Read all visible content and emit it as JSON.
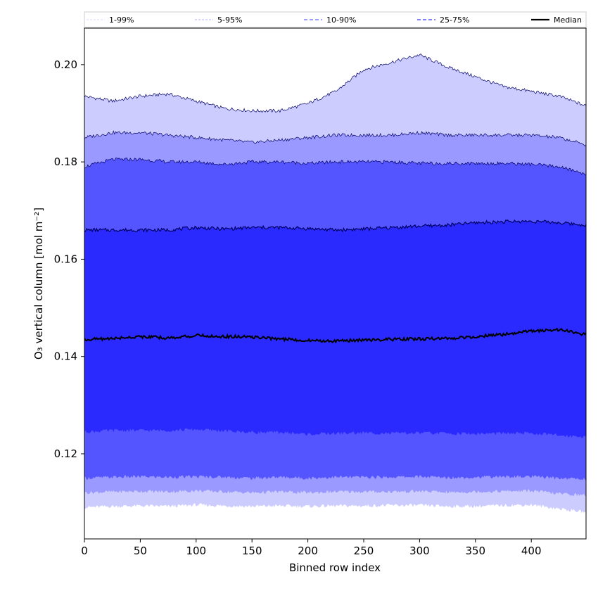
{
  "chart_data": {
    "type": "area",
    "xlabel": "Binned row index",
    "ylabel": "O₃ vertical column [mol m⁻²]",
    "xlim": [
      0,
      449
    ],
    "ylim": [
      0.1025,
      0.2075
    ],
    "x_ticks": [
      0,
      50,
      100,
      150,
      200,
      250,
      300,
      350,
      400
    ],
    "y_ticks": [
      0.12,
      0.14,
      0.16,
      0.18,
      0.2
    ],
    "y_tick_labels": [
      "0.12",
      "0.14",
      "0.16",
      "0.18",
      "0.20"
    ],
    "grid": false,
    "legend_position": "top, above plot",
    "x": [
      0,
      25,
      50,
      75,
      100,
      125,
      150,
      175,
      200,
      225,
      250,
      275,
      300,
      325,
      350,
      375,
      400,
      425,
      449
    ],
    "bands": [
      {
        "name": "1-99%",
        "color": "#ccccff",
        "line_color": "#ccccff",
        "lower": [
          0.109,
          0.1092,
          0.1093,
          0.1092,
          0.1095,
          0.1093,
          0.1092,
          0.1093,
          0.1092,
          0.1093,
          0.1093,
          0.1094,
          0.1094,
          0.1092,
          0.1092,
          0.1094,
          0.1095,
          0.1087,
          0.108
        ],
        "upper": [
          0.1935,
          0.1925,
          0.1935,
          0.194,
          0.1925,
          0.191,
          0.1905,
          0.1905,
          0.192,
          0.1945,
          0.199,
          0.2005,
          0.202,
          0.1995,
          0.1975,
          0.1955,
          0.1945,
          0.1935,
          0.1915
        ]
      },
      {
        "name": "5-95%",
        "color": "#9999ff",
        "line_color": "#9999ff",
        "lower": [
          0.112,
          0.1122,
          0.1123,
          0.1122,
          0.1124,
          0.1122,
          0.112,
          0.1122,
          0.112,
          0.1122,
          0.1122,
          0.1122,
          0.1123,
          0.1121,
          0.1122,
          0.1123,
          0.1124,
          0.1118,
          0.1115
        ],
        "upper": [
          0.185,
          0.186,
          0.186,
          0.1855,
          0.185,
          0.1845,
          0.184,
          0.1845,
          0.185,
          0.1855,
          0.1855,
          0.1855,
          0.186,
          0.1855,
          0.1855,
          0.1855,
          0.1855,
          0.185,
          0.1835
        ]
      },
      {
        "name": "10-90%",
        "color": "#5555ff",
        "line_color": "#6666ff",
        "lower": [
          0.115,
          0.1152,
          0.1153,
          0.1152,
          0.1153,
          0.1152,
          0.115,
          0.1152,
          0.115,
          0.1152,
          0.1152,
          0.1152,
          0.1153,
          0.1151,
          0.1152,
          0.1153,
          0.1153,
          0.115,
          0.1148
        ],
        "upper": [
          0.179,
          0.1805,
          0.1805,
          0.18,
          0.18,
          0.1795,
          0.18,
          0.18,
          0.1797,
          0.18,
          0.18,
          0.18,
          0.1797,
          0.1797,
          0.1797,
          0.1797,
          0.1795,
          0.179,
          0.1775
        ]
      },
      {
        "name": "25-75%",
        "color": "#2a2aff",
        "line_color": "#4444ff",
        "lower": [
          0.1245,
          0.1248,
          0.1248,
          0.1248,
          0.125,
          0.1247,
          0.1244,
          0.1244,
          0.124,
          0.1242,
          0.1243,
          0.1242,
          0.1243,
          0.1242,
          0.1241,
          0.1242,
          0.1242,
          0.1238,
          0.1235
        ],
        "upper": [
          0.166,
          0.166,
          0.166,
          0.166,
          0.1665,
          0.1662,
          0.1665,
          0.1665,
          0.1663,
          0.166,
          0.1662,
          0.1665,
          0.1668,
          0.167,
          0.1675,
          0.1677,
          0.1678,
          0.1675,
          0.167
        ]
      }
    ],
    "median": {
      "name": "Median",
      "color": "#000000",
      "values": [
        0.1435,
        0.1437,
        0.1441,
        0.1438,
        0.1443,
        0.1441,
        0.144,
        0.1436,
        0.1433,
        0.1432,
        0.1434,
        0.1435,
        0.1436,
        0.1437,
        0.1441,
        0.1445,
        0.1452,
        0.1455,
        0.1445
      ]
    },
    "legend": [
      {
        "label": "1-99%",
        "color": "#ccccff",
        "style": "dashed-thin"
      },
      {
        "label": "5-95%",
        "color": "#9999ff",
        "style": "dashed-thin"
      },
      {
        "label": "10-90%",
        "color": "#6666ff",
        "style": "dashed"
      },
      {
        "label": "25-75%",
        "color": "#3333ff",
        "style": "dashed"
      },
      {
        "label": "Median",
        "color": "#000000",
        "style": "solid"
      }
    ]
  }
}
